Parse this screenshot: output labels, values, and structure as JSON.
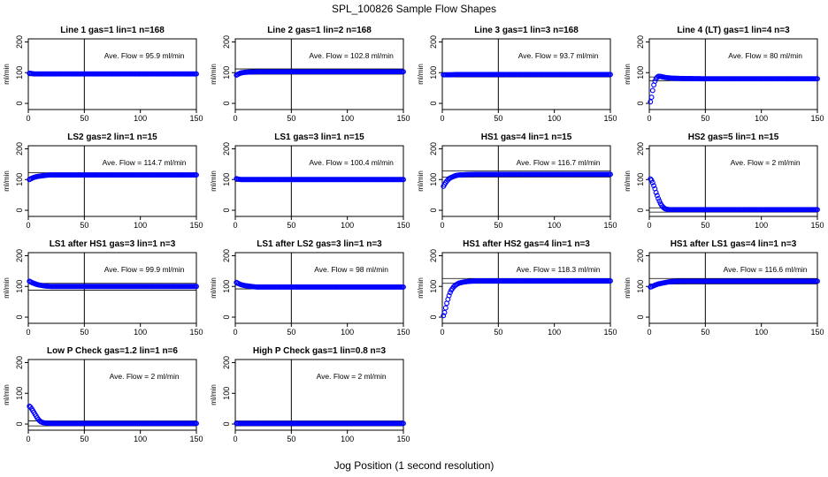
{
  "figure": {
    "title": "SPL_100826  Sample Flow Shapes",
    "xlabel": "Jog Position (1 second resolution)"
  },
  "chart_data": [
    {
      "type": "scatter",
      "title": "Line 1 gas=1 lin=1 n=168",
      "ylabel": "ml/min",
      "annotation": "Ave. Flow =  95.9  ml/min",
      "xlim": [
        0,
        150
      ],
      "ylim": [
        -20,
        210
      ],
      "xticks": [
        0,
        50,
        100,
        150
      ],
      "yticks": [
        0,
        100,
        200
      ],
      "vline": 50,
      "hlines": [
        90,
        102
      ],
      "marker_color": "#0000ff",
      "x": [
        1,
        2,
        3,
        5,
        8,
        12,
        20,
        30,
        50,
        75,
        100,
        125,
        150
      ],
      "y": [
        98,
        98,
        97,
        96,
        96,
        96,
        96,
        96,
        96,
        96,
        96,
        96,
        96
      ]
    },
    {
      "type": "scatter",
      "title": "Line 2 gas=1 lin=2 n=168",
      "ylabel": "ml/min",
      "annotation": "Ave. Flow =  102.8  ml/min",
      "xlim": [
        0,
        150
      ],
      "ylim": [
        -20,
        210
      ],
      "xticks": [
        0,
        50,
        100,
        150
      ],
      "yticks": [
        0,
        100,
        200
      ],
      "vline": 50,
      "hlines": [
        95,
        112
      ],
      "marker_color": "#0000ff",
      "x": [
        1,
        2,
        3,
        5,
        8,
        12,
        20,
        30,
        50,
        75,
        100,
        125,
        150
      ],
      "y": [
        92,
        94,
        96,
        99,
        101,
        102,
        103,
        103,
        103,
        103,
        103,
        103,
        103
      ]
    },
    {
      "type": "scatter",
      "title": "Line 3 gas=1 lin=3 n=168",
      "ylabel": "ml/min",
      "annotation": "Ave. Flow =  93.7  ml/min",
      "xlim": [
        0,
        150
      ],
      "ylim": [
        -20,
        210
      ],
      "xticks": [
        0,
        50,
        100,
        150
      ],
      "yticks": [
        0,
        100,
        200
      ],
      "vline": 50,
      "hlines": [
        86,
        100
      ],
      "marker_color": "#0000ff",
      "x": [
        1,
        2,
        3,
        5,
        8,
        12,
        20,
        30,
        50,
        75,
        100,
        125,
        150
      ],
      "y": [
        93,
        93,
        93,
        93,
        93,
        94,
        94,
        94,
        94,
        94,
        94,
        94,
        94
      ]
    },
    {
      "type": "scatter",
      "title": "Line 4 (LT) gas=1 lin=4 n=3",
      "ylabel": "ml/min",
      "annotation": "Ave. Flow =  80  ml/min",
      "xlim": [
        0,
        150
      ],
      "ylim": [
        -20,
        210
      ],
      "xticks": [
        0,
        50,
        100,
        150
      ],
      "yticks": [
        0,
        100,
        200
      ],
      "vline": 50,
      "hlines": [
        74,
        86
      ],
      "marker_color": "#0000ff",
      "x": [
        1,
        2,
        3,
        4,
        5,
        6,
        7,
        8,
        10,
        12,
        15,
        20,
        30,
        50,
        75,
        100,
        125,
        150
      ],
      "y": [
        5,
        20,
        42,
        60,
        72,
        80,
        85,
        88,
        88,
        86,
        84,
        82,
        81,
        80,
        80,
        80,
        80,
        80
      ]
    },
    {
      "type": "scatter",
      "title": "LS2 gas=2 lin=1 n=15",
      "ylabel": "ml/min",
      "annotation": "Ave. Flow =  114.7  ml/min",
      "xlim": [
        0,
        150
      ],
      "ylim": [
        -20,
        210
      ],
      "xticks": [
        0,
        50,
        100,
        150
      ],
      "yticks": [
        0,
        100,
        200
      ],
      "vline": 50,
      "hlines": [
        108,
        122
      ],
      "marker_color": "#0000ff",
      "x": [
        1,
        2,
        3,
        5,
        8,
        12,
        16,
        20,
        30,
        50,
        75,
        100,
        125,
        150
      ],
      "y": [
        100,
        102,
        104,
        107,
        110,
        112,
        114,
        115,
        115,
        115,
        115,
        115,
        115,
        115
      ]
    },
    {
      "type": "scatter",
      "title": "LS1 gas=3 lin=1 n=15",
      "ylabel": "ml/min",
      "annotation": "Ave. Flow =  100.4  ml/min",
      "xlim": [
        0,
        150
      ],
      "ylim": [
        -20,
        210
      ],
      "xticks": [
        0,
        50,
        100,
        150
      ],
      "yticks": [
        0,
        100,
        200
      ],
      "vline": 50,
      "hlines": [
        94,
        106
      ],
      "marker_color": "#0000ff",
      "x": [
        1,
        2,
        3,
        5,
        8,
        12,
        20,
        30,
        50,
        75,
        100,
        125,
        150
      ],
      "y": [
        103,
        102,
        101,
        100,
        100,
        100,
        100,
        100,
        100,
        100,
        100,
        100,
        100
      ]
    },
    {
      "type": "scatter",
      "title": "HS1 gas=4 lin=1 n=15",
      "ylabel": "ml/min",
      "annotation": "Ave. Flow =  116.7  ml/min",
      "xlim": [
        0,
        150
      ],
      "ylim": [
        -20,
        210
      ],
      "xticks": [
        0,
        50,
        100,
        150
      ],
      "yticks": [
        0,
        100,
        200
      ],
      "vline": 50,
      "hlines": [
        108,
        128
      ],
      "marker_color": "#0000ff",
      "x": [
        1,
        2,
        3,
        4,
        5,
        6,
        8,
        10,
        12,
        15,
        20,
        30,
        50,
        75,
        100,
        125,
        150
      ],
      "y": [
        78,
        84,
        90,
        95,
        99,
        103,
        107,
        110,
        113,
        115,
        116,
        117,
        117,
        117,
        117,
        117,
        117
      ]
    },
    {
      "type": "scatter",
      "title": "HS2 gas=5 lin=1 n=15",
      "ylabel": "ml/min",
      "annotation": "Ave. Flow =  2  ml/min",
      "xlim": [
        0,
        150
      ],
      "ylim": [
        -20,
        210
      ],
      "xticks": [
        0,
        50,
        100,
        150
      ],
      "yticks": [
        0,
        100,
        200
      ],
      "vline": 50,
      "hlines": [
        -6,
        8
      ],
      "marker_color": "#0000ff",
      "x": [
        1,
        2,
        3,
        4,
        5,
        6,
        7,
        8,
        9,
        10,
        11,
        12,
        13,
        14,
        16,
        18,
        20,
        25,
        30,
        50,
        75,
        100,
        125,
        150
      ],
      "y": [
        102,
        98,
        90,
        80,
        70,
        58,
        48,
        38,
        30,
        22,
        16,
        11,
        8,
        5,
        3,
        2,
        2,
        2,
        2,
        2,
        2,
        2,
        2,
        2
      ]
    },
    {
      "type": "scatter",
      "title": "LS1 after HS1 gas=3 lin=1 n=3",
      "ylabel": "ml/min",
      "annotation": "Ave. Flow =  99.9  ml/min",
      "xlim": [
        0,
        150
      ],
      "ylim": [
        -20,
        210
      ],
      "xticks": [
        0,
        50,
        100,
        150
      ],
      "yticks": [
        0,
        100,
        200
      ],
      "vline": 50,
      "hlines": [
        88,
        110
      ],
      "marker_color": "#0000ff",
      "x": [
        1,
        2,
        3,
        5,
        8,
        12,
        16,
        20,
        30,
        50,
        75,
        100,
        125,
        150
      ],
      "y": [
        117,
        115,
        113,
        110,
        106,
        103,
        101,
        100,
        100,
        100,
        100,
        100,
        100,
        100
      ]
    },
    {
      "type": "scatter",
      "title": "LS1 after LS2 gas=3 lin=1 n=3",
      "ylabel": "ml/min",
      "annotation": "Ave. Flow =  98  ml/min",
      "xlim": [
        0,
        150
      ],
      "ylim": [
        -20,
        210
      ],
      "xticks": [
        0,
        50,
        100,
        150
      ],
      "yticks": [
        0,
        100,
        200
      ],
      "vline": 50,
      "hlines": [
        92,
        104
      ],
      "marker_color": "#0000ff",
      "x": [
        1,
        2,
        3,
        5,
        8,
        12,
        16,
        20,
        30,
        50,
        75,
        100,
        125,
        150
      ],
      "y": [
        113,
        111,
        109,
        106,
        103,
        101,
        99,
        98,
        98,
        98,
        98,
        98,
        98,
        98
      ]
    },
    {
      "type": "scatter",
      "title": "HS1 after HS2 gas=4 lin=1 n=3",
      "ylabel": "ml/min",
      "annotation": "Ave. Flow =  118.3  ml/min",
      "xlim": [
        0,
        150
      ],
      "ylim": [
        -20,
        210
      ],
      "xticks": [
        0,
        50,
        100,
        150
      ],
      "yticks": [
        0,
        100,
        200
      ],
      "vline": 50,
      "hlines": [
        110,
        126
      ],
      "marker_color": "#0000ff",
      "x": [
        1,
        2,
        3,
        4,
        5,
        6,
        7,
        8,
        10,
        12,
        15,
        20,
        25,
        30,
        50,
        75,
        100,
        125,
        150
      ],
      "y": [
        5,
        15,
        30,
        45,
        58,
        70,
        80,
        88,
        98,
        105,
        111,
        115,
        117,
        118,
        118,
        118,
        118,
        118,
        118
      ]
    },
    {
      "type": "scatter",
      "title": "HS1 after LS1 gas=4 lin=1 n=3",
      "ylabel": "ml/min",
      "annotation": "Ave. Flow =  116.6  ml/min",
      "xlim": [
        0,
        150
      ],
      "ylim": [
        -20,
        210
      ],
      "xticks": [
        0,
        50,
        100,
        150
      ],
      "yticks": [
        0,
        100,
        200
      ],
      "vline": 50,
      "hlines": [
        108,
        126
      ],
      "marker_color": "#0000ff",
      "x": [
        1,
        2,
        3,
        5,
        8,
        12,
        16,
        20,
        30,
        50,
        75,
        100,
        125,
        150
      ],
      "y": [
        98,
        99,
        101,
        104,
        108,
        111,
        114,
        116,
        117,
        117,
        117,
        117,
        117,
        117
      ]
    },
    {
      "type": "scatter",
      "title": "Low P Check gas=1.2 lin=1 n=6",
      "ylabel": "ml/min",
      "annotation": "Ave. Flow =  2  ml/min",
      "xlim": [
        0,
        150
      ],
      "ylim": [
        -20,
        210
      ],
      "xticks": [
        0,
        50,
        100,
        150
      ],
      "yticks": [
        0,
        100,
        200
      ],
      "vline": 50,
      "hlines": [
        -6,
        10
      ],
      "marker_color": "#0000ff",
      "x": [
        1,
        2,
        3,
        4,
        5,
        6,
        7,
        8,
        9,
        10,
        11,
        12,
        14,
        16,
        20,
        30,
        50,
        75,
        100,
        125,
        150
      ],
      "y": [
        58,
        55,
        50,
        44,
        38,
        32,
        26,
        20,
        15,
        11,
        8,
        6,
        4,
        3,
        2,
        2,
        2,
        2,
        2,
        2,
        2
      ]
    },
    {
      "type": "scatter",
      "title": "High P Check gas=1 lin=0.8 n=3",
      "ylabel": "ml/min",
      "annotation": "Ave. Flow =  2  ml/min",
      "xlim": [
        0,
        150
      ],
      "ylim": [
        -20,
        210
      ],
      "xticks": [
        0,
        50,
        100,
        150
      ],
      "yticks": [
        0,
        100,
        200
      ],
      "vline": 50,
      "hlines": [
        -6,
        10
      ],
      "marker_color": "#0000ff",
      "x": [
        1,
        2,
        3,
        5,
        8,
        12,
        20,
        30,
        50,
        75,
        100,
        125,
        150
      ],
      "y": [
        2,
        2,
        2,
        2,
        2,
        2,
        2,
        2,
        2,
        2,
        2,
        2,
        2
      ]
    }
  ]
}
